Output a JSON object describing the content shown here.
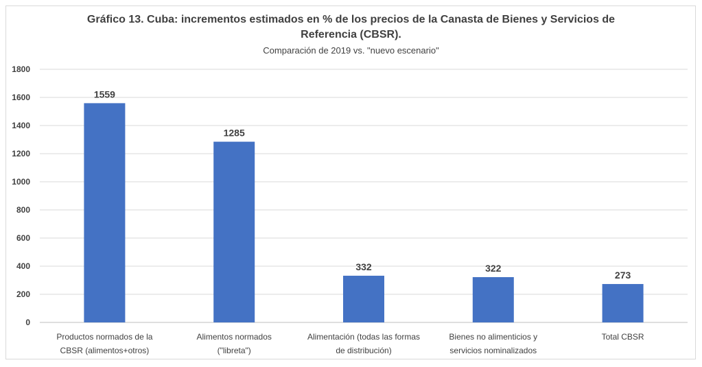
{
  "chart_data": {
    "type": "bar",
    "title_line1": "Gráfico 13. Cuba: incrementos estimados en % de los precios de la Canasta de Bienes y Servicios de",
    "title_line2": "Referencia (CBSR).",
    "subtitle": "Comparación de 2019 vs. \"nuevo escenario\"",
    "categories": [
      [
        "Productos normados de la",
        "CBSR (alimentos+otros)"
      ],
      [
        "Alimentos normados",
        "(\"libreta\")"
      ],
      [
        "Alimentación (todas las formas",
        "de distribución)"
      ],
      [
        "Bienes no alimenticios y",
        "servicios nominalizados"
      ],
      [
        "Total CBSR"
      ]
    ],
    "values": [
      1559,
      1285,
      332,
      322,
      273
    ],
    "data_labels": [
      "1559",
      "1285",
      "332",
      "322",
      "273"
    ],
    "ylim": [
      0,
      1800
    ],
    "yticks": [
      0,
      200,
      400,
      600,
      800,
      1000,
      1200,
      1400,
      1600,
      1800
    ],
    "grid": true,
    "legend": "none",
    "bar_color": "#4472C4",
    "xlabel": "",
    "ylabel": ""
  }
}
